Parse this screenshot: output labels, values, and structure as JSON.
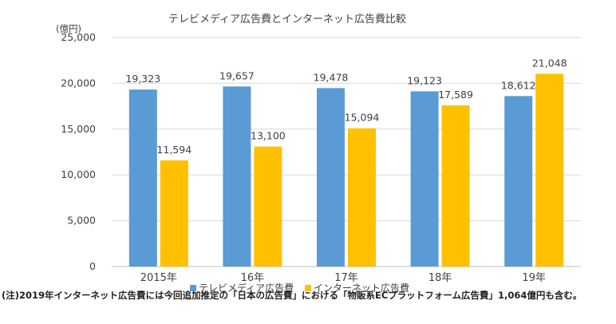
{
  "chart_data": {
    "type": "bar",
    "title": "テレビメディア広告費とインターネット広告費比較",
    "unit_label": "(億円)",
    "categories": [
      "2015年",
      "16年",
      "17年",
      "18年",
      "19年"
    ],
    "series": [
      {
        "name": "テレビメディア広告費",
        "color": "#5b9bd5",
        "values": [
          19323,
          19657,
          19478,
          19123,
          18612
        ]
      },
      {
        "name": "インターネット広告費",
        "color": "#ffc000",
        "values": [
          11594,
          13100,
          15094,
          17589,
          21048
        ]
      }
    ],
    "ylim": [
      0,
      25000
    ],
    "yticks": [
      0,
      5000,
      10000,
      15000,
      20000,
      25000
    ],
    "ytick_labels": [
      "0",
      "5,000",
      "10,000",
      "15,000",
      "20,000",
      "25,000"
    ],
    "data_labels": [
      [
        "19,323",
        "19,657",
        "19,478",
        "19,123",
        "18,612"
      ],
      [
        "11,594",
        "13,100",
        "15,094",
        "17,589",
        "21,048"
      ]
    ],
    "grid": true,
    "legend_position": "bottom",
    "note": "(注)2019年インターネット広告費には今回追加推定の「日本の広告費」における「物販系ECプラットフォーム広告費」1,064億円も含む。"
  }
}
